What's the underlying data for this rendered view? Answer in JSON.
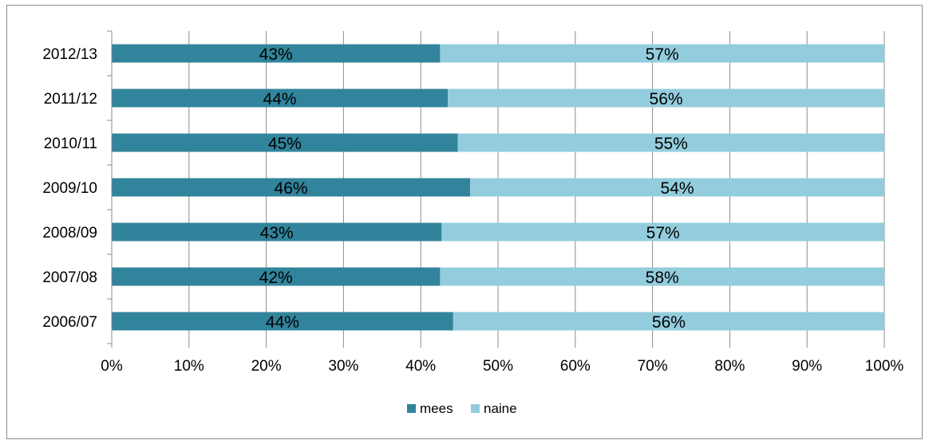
{
  "chart_data": {
    "type": "bar",
    "orientation": "horizontal",
    "stacked": "percent",
    "categories": [
      "2012/13",
      "2011/12",
      "2010/11",
      "2009/10",
      "2008/09",
      "2007/08",
      "2006/07"
    ],
    "series": [
      {
        "name": "mees",
        "color": "#31849B",
        "values": [
          42.5,
          43.5,
          44.8,
          46.4,
          42.7,
          42.5,
          44.2
        ],
        "labels": [
          "43%",
          "44%",
          "45%",
          "46%",
          "43%",
          "42%",
          "44%"
        ]
      },
      {
        "name": "naine",
        "color": "#93CDDD",
        "values": [
          57.5,
          56.5,
          55.2,
          53.6,
          57.3,
          57.5,
          55.8
        ],
        "labels": [
          "57%",
          "56%",
          "55%",
          "54%",
          "57%",
          "58%",
          "56%"
        ]
      }
    ],
    "xlim": [
      0,
      100
    ],
    "xticks": [
      "0%",
      "10%",
      "20%",
      "30%",
      "40%",
      "50%",
      "60%",
      "70%",
      "80%",
      "90%",
      "100%"
    ],
    "grid": "vertical",
    "legend": "bottom-center",
    "title": "",
    "xlabel": "",
    "ylabel": ""
  }
}
